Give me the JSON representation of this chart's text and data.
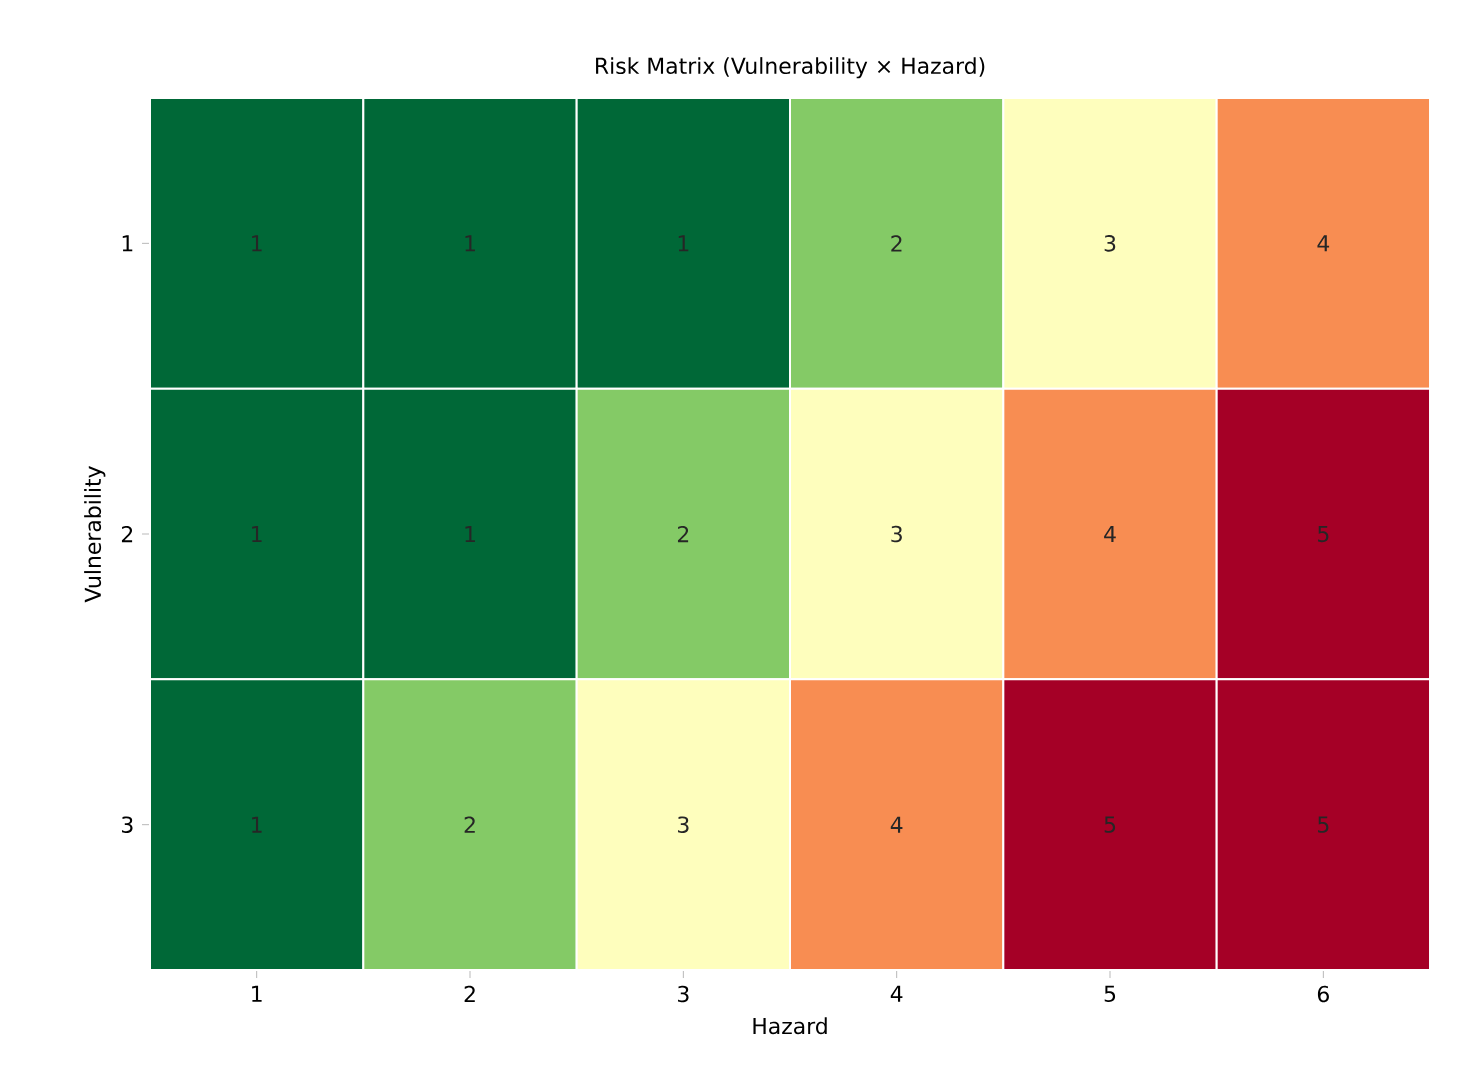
{
  "chart_data": {
    "type": "heatmap",
    "title": "Risk Matrix (Vulnerability × Hazard)",
    "xlabel": "Hazard",
    "ylabel": "Vulnerability",
    "categories": [
      "1",
      "2",
      "3",
      "4",
      "5",
      "6"
    ],
    "y_categories": [
      "1",
      "2",
      "3"
    ],
    "cells": [
      [
        1,
        1,
        1,
        2,
        3,
        4
      ],
      [
        1,
        1,
        2,
        3,
        4,
        5
      ],
      [
        1,
        2,
        3,
        4,
        5,
        5
      ]
    ],
    "data_labels": true
  }
}
